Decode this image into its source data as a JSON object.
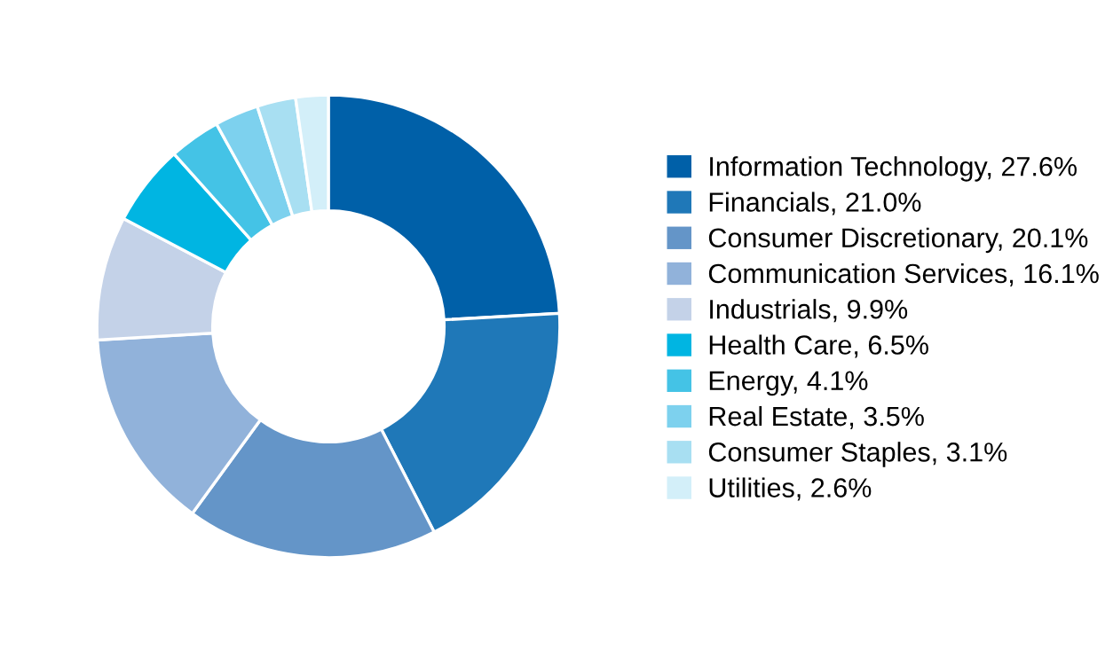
{
  "chart_data": {
    "type": "donut",
    "categories": [
      "Information Technology, 27.6%",
      "Financials, 21.0%",
      "Consumer Discretionary, 20.1%",
      "Communication Services, 16.1%",
      "Industrials, 9.9%",
      "Health Care, 6.5%",
      "Energy, 4.1%",
      "Real Estate, 3.5%",
      "Consumer Staples, 3.1%",
      "Utilities, 2.6%"
    ],
    "values": [
      27.6,
      21.0,
      20.1,
      16.1,
      9.9,
      6.5,
      4.1,
      3.5,
      3.1,
      2.6
    ],
    "colors": [
      "#0060a8",
      "#1f78b8",
      "#6495c8",
      "#91b2da",
      "#c4d2e8",
      "#00b5e2",
      "#44c3e6",
      "#7dd1ee",
      "#a8dff2",
      "#d3eff9"
    ],
    "legend": "right"
  }
}
